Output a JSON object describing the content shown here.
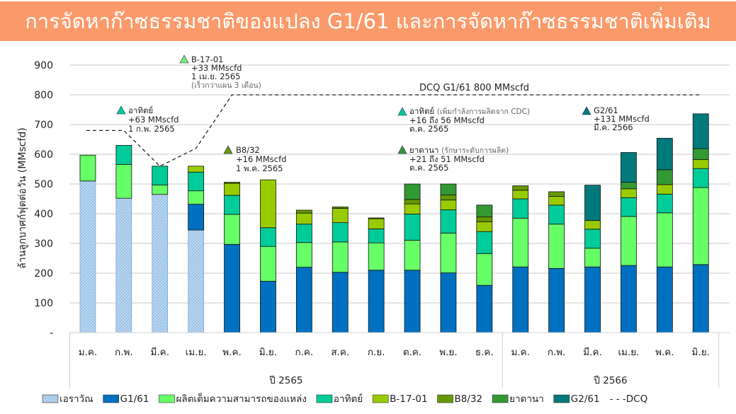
{
  "header": {
    "title": "การจัดหาก๊าซธรรมชาติของแปลง G1/61 และการจัดหาก๊าซธรรมชาติเพิ่มเติม"
  },
  "chart_data": {
    "type": "bar",
    "stacked": true,
    "title": "การจัดหาก๊าซธรรมชาติของแปลง G1/61 และการจัดหาก๊าซธรรมชาติเพิ่มเติม",
    "ylabel": "ล้านลูกบาศก์ฟุตต่อวัน (MMscfd)",
    "xlabel": "",
    "ylim": [
      0,
      900
    ],
    "yticks": [
      "-",
      "100",
      "200",
      "300",
      "400",
      "500",
      "600",
      "700",
      "800",
      "900"
    ],
    "grid": true,
    "legend_position": "bottom",
    "categories": [
      "ม.ค.",
      "ก.พ.",
      "มี.ค.",
      "เม.ย.",
      "พ.ค.",
      "มิ.ย.",
      "ก.ค.",
      "ส.ค.",
      "ก.ย.",
      "ต.ค.",
      "พ.ย.",
      "ธ.ค.",
      "ม.ค.",
      "ก.พ.",
      "มี.ค.",
      "เม.ย.",
      "พ.ค.",
      "มิ.ย."
    ],
    "year_groups": [
      {
        "label": "ปี 2565",
        "count": 12
      },
      {
        "label": "ปี 2566",
        "count": 6
      }
    ],
    "series": [
      {
        "name": "เอราวัณ",
        "color": "#9DC3E6",
        "hatched": true,
        "values": [
          510,
          452,
          465,
          345,
          0,
          0,
          0,
          0,
          0,
          0,
          0,
          0,
          0,
          0,
          0,
          0,
          0,
          0
        ]
      },
      {
        "name": "G1/61",
        "color": "#0070C0",
        "values": [
          0,
          0,
          0,
          87,
          297,
          173,
          220,
          203,
          210,
          210,
          201,
          159,
          221,
          216,
          221,
          226,
          221,
          229
        ]
      },
      {
        "name": "ผลิตเต็มความสามารถของแหล่ง",
        "color": "#66FF66",
        "values": [
          87,
          114,
          32,
          45,
          101,
          117,
          83,
          102,
          92,
          101,
          134,
          107,
          164,
          149,
          63,
          165,
          182,
          259
        ]
      },
      {
        "name": "อาทิตย์",
        "color": "#00CC99",
        "values": [
          0,
          64,
          63,
          63,
          64,
          63,
          62,
          65,
          47,
          88,
          78,
          74,
          65,
          64,
          64,
          63,
          63,
          64
        ]
      },
      {
        "name": "B-17-01",
        "color": "#99CC00",
        "values": [
          0,
          0,
          0,
          20,
          40,
          161,
          37,
          48,
          34,
          34,
          33,
          33,
          29,
          29,
          29,
          30,
          32,
          30
        ]
      },
      {
        "name": "B8/32",
        "color": "#669900",
        "values": [
          0,
          0,
          0,
          0,
          4,
          0,
          10,
          5,
          3,
          15,
          17,
          16,
          15,
          16,
          0,
          0,
          0,
          0
        ]
      },
      {
        "name": "ยาดานา",
        "color": "#339933",
        "values": [
          0,
          0,
          0,
          0,
          0,
          0,
          0,
          0,
          0,
          52,
          37,
          40,
          0,
          0,
          0,
          22,
          50,
          37
        ]
      },
      {
        "name": "G2/61",
        "color": "#007A7A",
        "values": [
          0,
          0,
          0,
          0,
          0,
          0,
          0,
          0,
          0,
          0,
          0,
          0,
          0,
          0,
          119,
          100,
          106,
          117
        ]
      }
    ],
    "line_series": {
      "name": "DCQ",
      "legend_label": "- - -DCQ",
      "style": "dashed",
      "values": [
        680,
        680,
        560,
        620,
        800,
        800,
        800,
        800,
        800,
        800,
        800,
        800,
        800,
        800,
        800,
        800,
        800,
        800
      ]
    },
    "annotations": [
      {
        "id": "arthit",
        "color": "#00CC99",
        "lines": [
          "อาทิตย์",
          "+63 MMscfd",
          "1 ก.พ. 2565"
        ]
      },
      {
        "id": "b17",
        "color": "#66DD66",
        "lines": [
          "B-17-01",
          "+33 MMscfd",
          "1 เม.ย. 2565"
        ],
        "note": "(เร็วกว่าแผน 3 เดือน)"
      },
      {
        "id": "b8",
        "color": "#669900",
        "lines": [
          "B8/32",
          "+16 MMscfd",
          "1 พ.ค. 2565"
        ]
      },
      {
        "id": "dcq",
        "lines": [
          "DCQ G1/61 800 MMscfd"
        ]
      },
      {
        "id": "arthit_cdc",
        "color": "#00CC99",
        "lines": [
          "อาทิตย์",
          "+16 ถึง 56 MMscfd",
          "ต.ค. 2565"
        ],
        "note": "(เพิ่มกำลังการผลิตจาก CDC)"
      },
      {
        "id": "yadana",
        "color": "#339933",
        "lines": [
          "ยาดานา",
          "+21 ถึง 51 MMscfd",
          "ต.ค. 2565"
        ],
        "note": "(รักษาระดับการผลิต)"
      },
      {
        "id": "g2",
        "color": "#007A7A",
        "lines": [
          "G2/61",
          "+131 MMscfd",
          "มี.ค. 2566"
        ]
      }
    ]
  }
}
